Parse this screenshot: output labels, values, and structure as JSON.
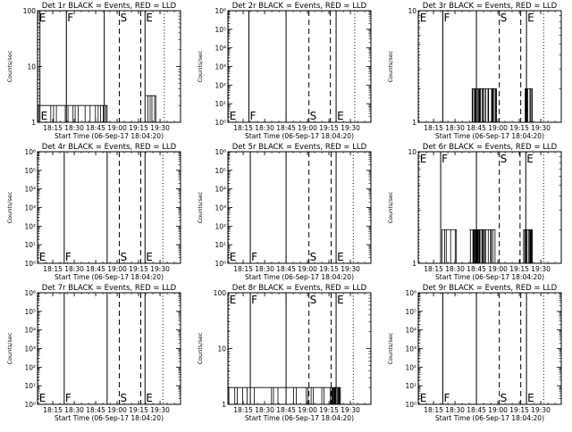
{
  "figure": {
    "xlabel": "Start Time (06-Sep-17 18:04:20)",
    "ylabel": "Counts/sec"
  },
  "chart_data": [
    {
      "type": "line",
      "title": "Det 1r BLACK = Events, RED = LLD",
      "yscale": "log",
      "ylim": [
        1,
        100
      ],
      "ytick_labels": [
        "1",
        "10",
        "100"
      ],
      "xlim": [
        "18:04:20",
        "19:44:20"
      ],
      "xtick_labels": [
        "18:15",
        "18:30",
        "18:45",
        "19:00",
        "19:15",
        "19:30"
      ],
      "markers": [
        {
          "label": "E",
          "time": "18:04:50",
          "style": "dotted",
          "label_pos": "top"
        },
        {
          "label": "E",
          "time": "18:06:00",
          "style": "solid",
          "label_pos": "bottom"
        },
        {
          "label": "F",
          "time": "18:24:30",
          "style": "solid",
          "label_pos": "top"
        },
        {
          "label": "",
          "time": "18:51:00",
          "style": "solid"
        },
        {
          "label": "S",
          "time": "19:01:30",
          "style": "dashed",
          "label_pos": "top"
        },
        {
          "label": "",
          "time": "19:16:30",
          "style": "dashed"
        },
        {
          "label": "E",
          "time": "19:19:30",
          "style": "solid",
          "label_pos": "top"
        },
        {
          "label": "",
          "time": "19:33:00",
          "style": "dotted"
        }
      ],
      "series": [
        {
          "name": "BLACK = Events",
          "segments": [
            {
              "start": "18:05",
              "end": "18:53",
              "level": 2,
              "density": "sparse"
            },
            {
              "start": "19:20",
              "end": "19:27",
              "level": 3,
              "density": "sparse"
            }
          ]
        }
      ]
    },
    {
      "type": "line",
      "title": "Det 2r BLACK = Events, RED = LLD",
      "yscale": "log",
      "ylim": [
        1,
        1000000
      ],
      "ytick_labels": [
        "10⁰",
        "10¹",
        "10²",
        "10³",
        "10⁴",
        "10⁵",
        "10⁶"
      ],
      "xlim": [
        "18:04:20",
        "19:44:20"
      ],
      "xtick_labels": [
        "18:15",
        "18:30",
        "18:45",
        "19:00",
        "19:15",
        "19:30"
      ],
      "markers": [
        {
          "label": "E",
          "time": "18:04:50",
          "style": "dotted",
          "label_pos": "bottom"
        },
        {
          "label": "F",
          "time": "18:19:00",
          "style": "solid",
          "label_pos": "bottom"
        },
        {
          "label": "",
          "time": "18:45:00",
          "style": "solid"
        },
        {
          "label": "S",
          "time": "19:01:00",
          "style": "dashed",
          "label_pos": "bottom"
        },
        {
          "label": "",
          "time": "19:16:00",
          "style": "dashed"
        },
        {
          "label": "E",
          "time": "19:20:00",
          "style": "solid",
          "label_pos": "bottom"
        },
        {
          "label": "",
          "time": "19:33:00",
          "style": "dotted"
        }
      ],
      "series": []
    },
    {
      "type": "line",
      "title": "Det 3r BLACK = Events, RED = LLD",
      "yscale": "log",
      "ylim": [
        1,
        10
      ],
      "ytick_labels": [
        "1",
        "10"
      ],
      "xlim": [
        "18:04:20",
        "19:44:20"
      ],
      "xtick_labels": [
        "18:15",
        "18:30",
        "18:45",
        "19:00",
        "19:15",
        "19:30"
      ],
      "markers": [
        {
          "label": "E",
          "time": "18:04:50",
          "style": "dotted",
          "label_pos": "top"
        },
        {
          "label": "F",
          "time": "18:21:30",
          "style": "solid",
          "label_pos": "top"
        },
        {
          "label": "",
          "time": "18:45:00",
          "style": "solid"
        },
        {
          "label": "S",
          "time": "19:01:00",
          "style": "dashed",
          "label_pos": "top"
        },
        {
          "label": "",
          "time": "19:16:00",
          "style": "dashed"
        },
        {
          "label": "E",
          "time": "19:20:00",
          "style": "solid",
          "label_pos": "top"
        },
        {
          "label": "",
          "time": "19:32:00",
          "style": "dotted"
        }
      ],
      "series": [
        {
          "name": "BLACK = Events",
          "segments": [
            {
              "start": "18:42",
              "end": "18:59",
              "level": 2,
              "density": "dense"
            },
            {
              "start": "19:19",
              "end": "19:24",
              "level": 2,
              "density": "dense"
            }
          ]
        }
      ]
    },
    {
      "type": "line",
      "title": "Det 4r BLACK = Events, RED = LLD",
      "yscale": "log",
      "ylim": [
        1,
        1000000
      ],
      "ytick_labels": [
        "10⁰",
        "10¹",
        "10²",
        "10³",
        "10⁴",
        "10⁵",
        "10⁶"
      ],
      "xlim": [
        "18:04:20",
        "19:44:20"
      ],
      "xtick_labels": [
        "18:15",
        "18:30",
        "18:45",
        "19:00",
        "19:15",
        "19:30"
      ],
      "markers": [
        {
          "label": "E",
          "time": "18:04:50",
          "style": "dotted",
          "label_pos": "bottom"
        },
        {
          "label": "F",
          "time": "18:23:00",
          "style": "solid",
          "label_pos": "bottom"
        },
        {
          "label": "",
          "time": "18:53:00",
          "style": "solid"
        },
        {
          "label": "S",
          "time": "19:01:30",
          "style": "dashed",
          "label_pos": "bottom"
        },
        {
          "label": "",
          "time": "19:16:30",
          "style": "dashed"
        },
        {
          "label": "E",
          "time": "19:19:30",
          "style": "solid",
          "label_pos": "bottom"
        },
        {
          "label": "",
          "time": "19:32:00",
          "style": "dotted"
        }
      ],
      "series": []
    },
    {
      "type": "line",
      "title": "Det 5r BLACK = Events, RED = LLD",
      "yscale": "log",
      "ylim": [
        1,
        1000000
      ],
      "ytick_labels": [
        "10⁰",
        "10¹",
        "10²",
        "10³",
        "10⁴",
        "10⁵",
        "10⁶"
      ],
      "xlim": [
        "18:04:20",
        "19:44:20"
      ],
      "xtick_labels": [
        "18:15",
        "18:30",
        "18:45",
        "19:00",
        "19:15",
        "19:30"
      ],
      "markers": [
        {
          "label": "E",
          "time": "18:04:50",
          "style": "dotted",
          "label_pos": "bottom"
        },
        {
          "label": "F",
          "time": "18:20:00",
          "style": "solid",
          "label_pos": "bottom"
        },
        {
          "label": "",
          "time": "18:45:00",
          "style": "solid"
        },
        {
          "label": "S",
          "time": "19:01:00",
          "style": "dashed",
          "label_pos": "bottom"
        },
        {
          "label": "",
          "time": "19:16:30",
          "style": "dashed"
        },
        {
          "label": "E",
          "time": "19:20:00",
          "style": "solid",
          "label_pos": "bottom"
        },
        {
          "label": "",
          "time": "19:32:00",
          "style": "dotted"
        }
      ],
      "series": []
    },
    {
      "type": "line",
      "title": "Det 6r BLACK = Events, RED = LLD",
      "yscale": "log",
      "ylim": [
        1,
        10
      ],
      "ytick_labels": [
        "1",
        "10"
      ],
      "xlim": [
        "18:04:20",
        "19:44:20"
      ],
      "xtick_labels": [
        "18:15",
        "18:30",
        "18:45",
        "19:00",
        "19:15",
        "19:30"
      ],
      "markers": [
        {
          "label": "E",
          "time": "18:04:50",
          "style": "dotted",
          "label_pos": "top"
        },
        {
          "label": "F",
          "time": "18:20:00",
          "style": "solid",
          "label_pos": "top"
        },
        {
          "label": "",
          "time": "18:45:00",
          "style": "solid"
        },
        {
          "label": "S",
          "time": "19:01:00",
          "style": "dashed",
          "label_pos": "top"
        },
        {
          "label": "",
          "time": "19:15:30",
          "style": "dashed"
        },
        {
          "label": "E",
          "time": "19:19:30",
          "style": "solid",
          "label_pos": "top"
        },
        {
          "label": "",
          "time": "19:32:00",
          "style": "dotted"
        }
      ],
      "series": [
        {
          "name": "BLACK = Events",
          "segments": [
            {
              "start": "18:21",
              "end": "18:31",
              "level": 2,
              "density": "sparse"
            },
            {
              "start": "18:40",
              "end": "18:58",
              "level": 2,
              "density": "dense"
            },
            {
              "start": "19:18",
              "end": "19:24",
              "level": 2,
              "density": "dense"
            }
          ]
        }
      ]
    },
    {
      "type": "line",
      "title": "Det 7r BLACK = Events, RED = LLD",
      "yscale": "log",
      "ylim": [
        1,
        1000000
      ],
      "ytick_labels": [
        "10⁰",
        "10¹",
        "10²",
        "10³",
        "10⁴",
        "10⁵",
        "10⁶"
      ],
      "xlim": [
        "18:04:20",
        "19:44:20"
      ],
      "xtick_labels": [
        "18:15",
        "18:30",
        "18:45",
        "19:00",
        "19:15",
        "19:30"
      ],
      "markers": [
        {
          "label": "E",
          "time": "18:04:50",
          "style": "dotted",
          "label_pos": "bottom"
        },
        {
          "label": "F",
          "time": "18:23:00",
          "style": "solid",
          "label_pos": "bottom"
        },
        {
          "label": "",
          "time": "18:53:00",
          "style": "solid"
        },
        {
          "label": "S",
          "time": "19:01:30",
          "style": "dashed",
          "label_pos": "bottom"
        },
        {
          "label": "",
          "time": "19:16:30",
          "style": "dashed"
        },
        {
          "label": "E",
          "time": "19:19:30",
          "style": "solid",
          "label_pos": "bottom"
        },
        {
          "label": "",
          "time": "19:32:00",
          "style": "dotted"
        }
      ],
      "series": []
    },
    {
      "type": "line",
      "title": "Det 8r BLACK = Events, RED = LLD",
      "yscale": "log",
      "ylim": [
        1,
        100
      ],
      "ytick_labels": [
        "1",
        "10",
        "100"
      ],
      "xlim": [
        "18:04:20",
        "19:44:20"
      ],
      "xtick_labels": [
        "18:15",
        "18:30",
        "18:45",
        "19:00",
        "19:15",
        "19:30"
      ],
      "markers": [
        {
          "label": "E",
          "time": "18:04:50",
          "style": "dotted",
          "label_pos": "top"
        },
        {
          "label": "F",
          "time": "18:20:00",
          "style": "solid",
          "label_pos": "top"
        },
        {
          "label": "",
          "time": "18:45:00",
          "style": "solid"
        },
        {
          "label": "S",
          "time": "19:01:00",
          "style": "dashed",
          "label_pos": "top"
        },
        {
          "label": "",
          "time": "19:16:30",
          "style": "dashed"
        },
        {
          "label": "E",
          "time": "19:20:00",
          "style": "solid",
          "label_pos": "top"
        },
        {
          "label": "",
          "time": "19:32:00",
          "style": "dotted"
        }
      ],
      "series": [
        {
          "name": "BLACK = Events",
          "segments": [
            {
              "start": "18:05",
              "end": "19:17",
              "level": 2,
              "density": "sparse"
            },
            {
              "start": "19:17",
              "end": "19:23",
              "level": 2,
              "density": "dense"
            }
          ]
        }
      ]
    },
    {
      "type": "line",
      "title": "Det 9r BLACK = Events, RED = LLD",
      "yscale": "log",
      "ylim": [
        1,
        1000000
      ],
      "ytick_labels": [
        "10⁰",
        "10¹",
        "10²",
        "10³",
        "10⁴",
        "10⁵",
        "10⁶"
      ],
      "xlim": [
        "18:04:20",
        "19:44:20"
      ],
      "xtick_labels": [
        "18:15",
        "18:30",
        "18:45",
        "19:00",
        "19:15",
        "19:30"
      ],
      "markers": [
        {
          "label": "E",
          "time": "18:04:50",
          "style": "dotted",
          "label_pos": "bottom"
        },
        {
          "label": "F",
          "time": "18:21:30",
          "style": "solid",
          "label_pos": "bottom"
        },
        {
          "label": "",
          "time": "18:45:00",
          "style": "solid"
        },
        {
          "label": "S",
          "time": "19:01:00",
          "style": "dashed",
          "label_pos": "bottom"
        },
        {
          "label": "",
          "time": "19:16:00",
          "style": "dashed"
        },
        {
          "label": "E",
          "time": "19:20:00",
          "style": "solid",
          "label_pos": "bottom"
        },
        {
          "label": "",
          "time": "19:32:00",
          "style": "dotted"
        }
      ],
      "series": []
    }
  ]
}
